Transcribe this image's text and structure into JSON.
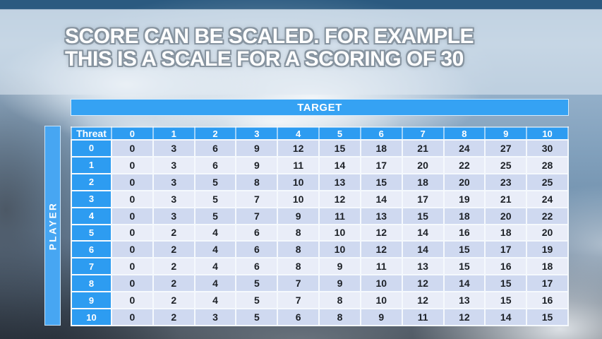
{
  "slide": {
    "title_line1": "SCORE CAN BE SCALED. FOR EXAMPLE",
    "title_line2": "THIS IS A SCALE FOR A SCORING OF 30"
  },
  "table": {
    "target_label": "TARGET",
    "player_label": "PLAYER",
    "corner_label": "Threat",
    "column_headers": [
      "0",
      "1",
      "2",
      "3",
      "4",
      "5",
      "6",
      "7",
      "8",
      "9",
      "10"
    ],
    "rows": [
      {
        "threat": "0",
        "values": [
          0,
          3,
          6,
          9,
          12,
          15,
          18,
          21,
          24,
          27,
          30
        ]
      },
      {
        "threat": "1",
        "values": [
          0,
          3,
          6,
          9,
          11,
          14,
          17,
          20,
          22,
          25,
          28
        ]
      },
      {
        "threat": "2",
        "values": [
          0,
          3,
          5,
          8,
          10,
          13,
          15,
          18,
          20,
          23,
          25
        ]
      },
      {
        "threat": "3",
        "values": [
          0,
          3,
          5,
          7,
          10,
          12,
          14,
          17,
          19,
          21,
          24
        ]
      },
      {
        "threat": "4",
        "values": [
          0,
          3,
          5,
          7,
          9,
          11,
          13,
          15,
          18,
          20,
          22
        ]
      },
      {
        "threat": "5",
        "values": [
          0,
          2,
          4,
          6,
          8,
          10,
          12,
          14,
          16,
          18,
          20
        ]
      },
      {
        "threat": "6",
        "values": [
          0,
          2,
          4,
          6,
          8,
          10,
          12,
          14,
          15,
          17,
          19
        ]
      },
      {
        "threat": "7",
        "values": [
          0,
          2,
          4,
          6,
          8,
          9,
          11,
          13,
          15,
          16,
          18
        ]
      },
      {
        "threat": "8",
        "values": [
          0,
          2,
          4,
          5,
          7,
          9,
          10,
          12,
          14,
          15,
          17
        ]
      },
      {
        "threat": "9",
        "values": [
          0,
          2,
          4,
          5,
          7,
          8,
          10,
          12,
          13,
          15,
          16
        ]
      },
      {
        "threat": "10",
        "values": [
          0,
          2,
          3,
          5,
          6,
          8,
          9,
          11,
          12,
          14,
          15
        ]
      }
    ]
  },
  "colors": {
    "accent_blue": "#2d9cf1",
    "target_blue": "#35a2f3",
    "player_blue": "#47a6f2",
    "row_dark": "#cfd9f0",
    "row_light": "#e9edf8",
    "border_white": "#f5f9fd",
    "cell_text": "#1c2026",
    "title_text": "#ffffff",
    "title_outline": "#8794a0"
  }
}
